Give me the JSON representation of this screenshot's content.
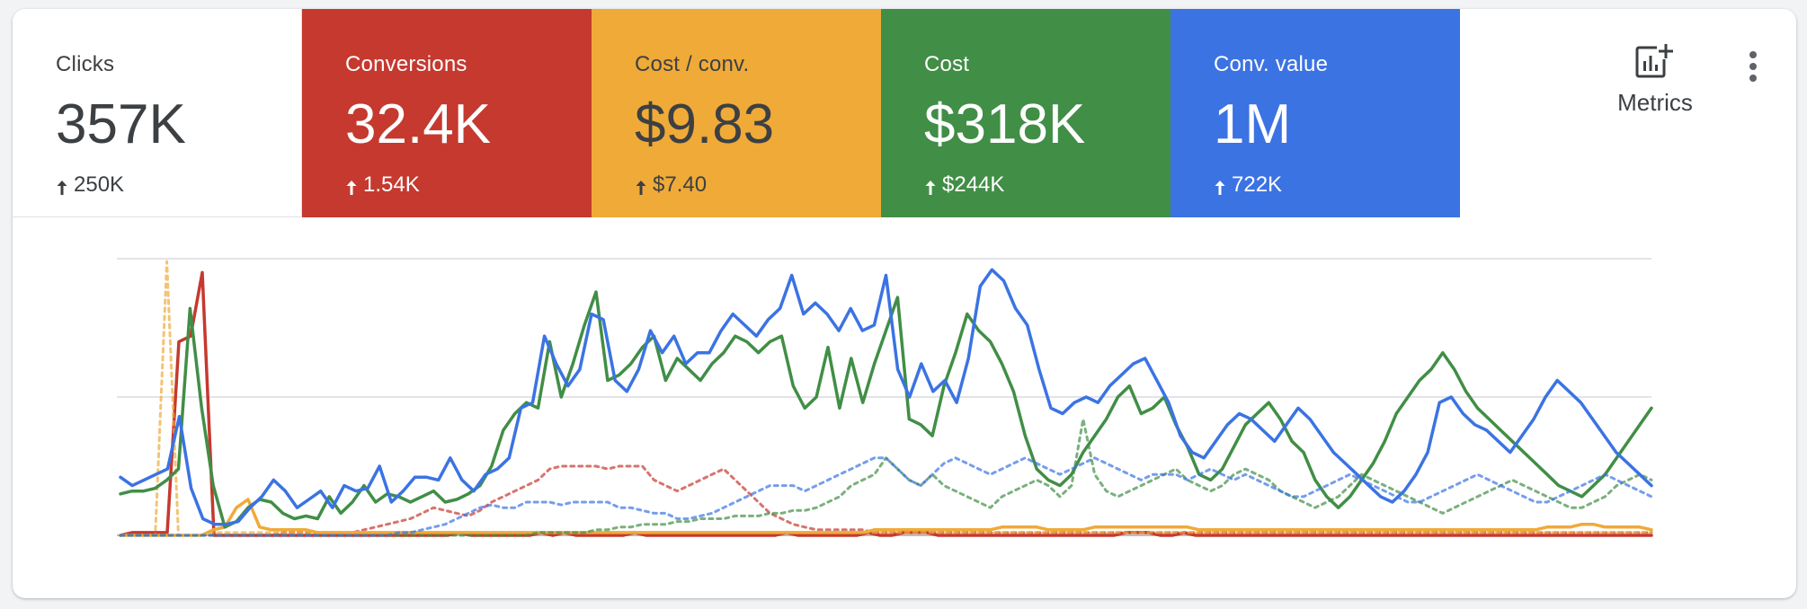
{
  "scorecards": [
    {
      "label": "Clicks",
      "value": "357K",
      "delta": "250K",
      "color": "#ffffff"
    },
    {
      "label": "Conversions",
      "value": "32.4K",
      "delta": "1.54K",
      "color": "#c5392f"
    },
    {
      "label": "Cost / conv.",
      "value": "$9.83",
      "delta": "$7.40",
      "color": "#efaa38"
    },
    {
      "label": "Cost",
      "value": "$318K",
      "delta": "$244K",
      "color": "#418e46"
    },
    {
      "label": "Conv. value",
      "value": "1M",
      "delta": "722K",
      "color": "#3b73e3"
    }
  ],
  "toolbar": {
    "metrics_label": "Metrics",
    "metrics_icon": "add-chart-icon",
    "more_icon": "more-vert-icon"
  },
  "chart_data": {
    "type": "line",
    "title": "",
    "xlabel": "",
    "ylabel": "",
    "ylim": [
      0,
      100
    ],
    "grid": true,
    "legend": "none",
    "series": [
      {
        "color": "#c5392f",
        "style": "solid",
        "values": [
          0,
          1,
          1,
          1,
          1,
          70,
          72,
          95,
          0,
          0,
          0,
          0,
          0,
          0,
          0,
          0,
          0,
          0,
          0,
          0,
          0,
          0,
          0,
          0,
          0,
          0,
          0,
          0,
          0,
          1,
          0,
          0,
          0,
          0,
          0,
          0,
          1,
          0,
          1,
          0,
          0,
          0,
          0,
          0,
          1,
          0,
          0,
          0,
          0,
          0,
          0,
          0,
          0,
          0,
          0,
          0,
          0,
          1,
          0,
          0,
          0,
          0,
          0,
          0,
          1,
          0,
          0,
          1,
          1,
          1,
          0,
          0,
          0,
          0,
          0,
          0,
          0,
          0,
          0,
          0,
          0,
          0,
          0,
          0,
          0,
          0,
          1,
          1,
          1,
          0,
          0,
          1,
          0,
          0,
          0,
          0,
          0,
          0,
          0,
          0,
          0,
          0,
          0,
          0,
          0,
          0,
          0,
          0,
          0,
          0,
          0,
          0,
          0,
          0,
          0,
          0,
          0,
          0,
          0,
          0,
          0,
          0,
          0,
          0,
          0,
          0,
          0,
          0,
          0,
          0,
          0,
          0
        ]
      },
      {
        "color": "#c5392f",
        "style": "dotted",
        "values": [
          0,
          0,
          0,
          0,
          0,
          0,
          0,
          0,
          0,
          0,
          0,
          0,
          0,
          0,
          1,
          1,
          1,
          1,
          1,
          1,
          1,
          2,
          3,
          4,
          5,
          6,
          8,
          10,
          9,
          8,
          7,
          9,
          12,
          14,
          16,
          18,
          20,
          24,
          25,
          25,
          25,
          25,
          24,
          25,
          25,
          25,
          20,
          18,
          16,
          18,
          20,
          22,
          24,
          20,
          16,
          12,
          8,
          6,
          4,
          3,
          2,
          2,
          2,
          2,
          2,
          1,
          1,
          1,
          1,
          1,
          1,
          1,
          1,
          1,
          1,
          1,
          1,
          1,
          1,
          1,
          1,
          1,
          1,
          1,
          1,
          1,
          1,
          1,
          1,
          1,
          1,
          1,
          1,
          1,
          1,
          1,
          1,
          1,
          1,
          1,
          1,
          1,
          1,
          1,
          1,
          1,
          1,
          1,
          1,
          1,
          1,
          1,
          1,
          1,
          1,
          1,
          1,
          1,
          1,
          1,
          1,
          1,
          1,
          1,
          1,
          1,
          1,
          1,
          1,
          1,
          1,
          1,
          1
        ]
      },
      {
        "color": "#efaa38",
        "style": "solid",
        "values": [
          0,
          0,
          0,
          0,
          0,
          0,
          0,
          0,
          2,
          3,
          10,
          13,
          3,
          2,
          2,
          2,
          2,
          1,
          1,
          1,
          1,
          1,
          1,
          1,
          1,
          1,
          1,
          1,
          1,
          1,
          1,
          1,
          1,
          1,
          1,
          1,
          1,
          1,
          1,
          1,
          1,
          1,
          1,
          1,
          1,
          1,
          1,
          1,
          1,
          1,
          1,
          1,
          1,
          1,
          1,
          1,
          1,
          1,
          1,
          1,
          1,
          1,
          1,
          1,
          1,
          2,
          2,
          2,
          2,
          2,
          2,
          2,
          2,
          2,
          2,
          2,
          3,
          3,
          3,
          3,
          2,
          2,
          2,
          2,
          3,
          3,
          3,
          3,
          3,
          3,
          3,
          3,
          3,
          2,
          2,
          2,
          2,
          2,
          2,
          2,
          2,
          2,
          2,
          2,
          2,
          2,
          2,
          2,
          2,
          2,
          2,
          2,
          2,
          2,
          2,
          2,
          2,
          2,
          2,
          2,
          2,
          2,
          2,
          3,
          3,
          3,
          4,
          4,
          3,
          3,
          3,
          3,
          2
        ]
      },
      {
        "color": "#efaa38",
        "style": "dotted",
        "values": [
          0,
          0,
          0,
          0,
          99,
          0,
          0,
          0,
          1,
          1,
          1,
          1,
          1,
          1,
          1,
          1,
          1,
          1,
          1,
          1,
          1,
          1,
          1,
          1,
          1,
          1,
          1,
          1,
          1,
          1,
          1,
          1,
          1,
          1,
          1,
          1,
          1,
          1,
          1,
          1,
          1,
          1,
          1,
          1,
          1,
          1,
          1,
          1,
          1,
          1,
          1,
          1,
          1,
          1,
          1,
          1,
          1,
          1,
          1,
          1,
          1,
          1,
          1,
          1,
          1,
          1,
          1,
          1,
          1,
          1,
          1,
          1,
          1,
          1,
          1,
          1,
          1,
          1,
          1,
          1,
          1,
          1,
          1,
          1,
          1,
          1,
          1,
          1,
          1,
          1,
          1,
          1,
          1,
          1,
          1,
          1,
          1,
          1,
          1,
          1,
          1,
          1,
          1,
          1,
          1,
          1,
          1,
          1,
          1,
          1,
          1,
          1,
          1,
          1,
          1,
          1,
          1,
          1,
          1,
          1,
          1,
          1,
          1,
          1,
          1,
          1,
          1,
          1,
          1,
          1,
          1,
          1,
          1
        ]
      },
      {
        "color": "#418e46",
        "style": "solid",
        "values": [
          15,
          16,
          16,
          17,
          20,
          24,
          82,
          46,
          18,
          3,
          5,
          10,
          13,
          12,
          8,
          6,
          7,
          6,
          14,
          8,
          12,
          18,
          12,
          15,
          14,
          12,
          14,
          16,
          12,
          13,
          15,
          18,
          25,
          38,
          44,
          48,
          46,
          70,
          50,
          62,
          76,
          88,
          56,
          58,
          62,
          68,
          72,
          56,
          64,
          60,
          56,
          62,
          66,
          72,
          70,
          66,
          70,
          72,
          54,
          46,
          50,
          68,
          46,
          64,
          48,
          62,
          74,
          86,
          42,
          40,
          36,
          54,
          66,
          80,
          74,
          70,
          62,
          52,
          36,
          24,
          20,
          18,
          22,
          30,
          36,
          42,
          50,
          54,
          44,
          46,
          50,
          40,
          32,
          22,
          20,
          24,
          32,
          40,
          44,
          48,
          42,
          34,
          30,
          20,
          14,
          10,
          14,
          20,
          26,
          34,
          44,
          50,
          56,
          60,
          66,
          60,
          52,
          46,
          42,
          38,
          34,
          30,
          26,
          22,
          18,
          16,
          14,
          18,
          22,
          28,
          34,
          40,
          46
        ]
      },
      {
        "color": "#418e46",
        "style": "dotted",
        "values": [
          0,
          0,
          0,
          0,
          0,
          0,
          0,
          0,
          0,
          0,
          0,
          0,
          0,
          0,
          0,
          0,
          0,
          0,
          0,
          0,
          0,
          0,
          0,
          0,
          0,
          0,
          0,
          0,
          0,
          0,
          0,
          0,
          0,
          0,
          0,
          0,
          1,
          1,
          1,
          1,
          1,
          2,
          2,
          3,
          3,
          4,
          4,
          4,
          5,
          5,
          6,
          6,
          6,
          7,
          7,
          7,
          8,
          8,
          9,
          9,
          10,
          12,
          14,
          18,
          20,
          22,
          28,
          24,
          20,
          18,
          22,
          18,
          16,
          14,
          12,
          10,
          14,
          16,
          18,
          20,
          18,
          14,
          18,
          42,
          22,
          16,
          14,
          16,
          18,
          20,
          22,
          24,
          20,
          18,
          16,
          18,
          22,
          24,
          22,
          20,
          16,
          14,
          12,
          10,
          12,
          14,
          18,
          22,
          20,
          18,
          16,
          14,
          12,
          10,
          8,
          10,
          12,
          14,
          16,
          18,
          20,
          18,
          16,
          14,
          12,
          10,
          10,
          12,
          14,
          18,
          20,
          22,
          20
        ]
      },
      {
        "color": "#3b73e3",
        "style": "solid",
        "values": [
          21,
          18,
          20,
          22,
          24,
          43,
          17,
          6,
          4,
          4,
          5,
          10,
          14,
          20,
          16,
          10,
          13,
          16,
          10,
          18,
          16,
          17,
          25,
          12,
          16,
          21,
          21,
          20,
          28,
          20,
          16,
          22,
          24,
          28,
          46,
          48,
          72,
          62,
          54,
          60,
          80,
          78,
          56,
          52,
          60,
          74,
          66,
          72,
          62,
          66,
          66,
          74,
          80,
          76,
          72,
          78,
          82,
          94,
          80,
          84,
          80,
          74,
          82,
          74,
          76,
          94,
          60,
          50,
          62,
          52,
          56,
          48,
          64,
          90,
          96,
          92,
          82,
          76,
          60,
          46,
          44,
          48,
          50,
          48,
          54,
          58,
          62,
          64,
          56,
          48,
          36,
          30,
          28,
          34,
          40,
          44,
          42,
          38,
          34,
          40,
          46,
          42,
          36,
          30,
          26,
          22,
          18,
          14,
          12,
          16,
          22,
          30,
          48,
          50,
          44,
          40,
          38,
          34,
          30,
          36,
          42,
          50,
          56,
          52,
          48,
          42,
          36,
          30,
          26,
          22,
          18
        ]
      },
      {
        "color": "#3b73e3",
        "style": "dotted",
        "values": [
          0,
          0,
          0,
          0,
          0,
          0,
          0,
          0,
          0,
          0,
          0,
          0,
          0,
          0,
          0,
          0,
          0,
          0,
          0,
          0,
          0,
          0,
          0,
          0,
          1,
          1,
          2,
          3,
          4,
          6,
          8,
          10,
          11,
          10,
          10,
          12,
          12,
          12,
          11,
          12,
          12,
          12,
          12,
          10,
          10,
          9,
          8,
          8,
          6,
          6,
          7,
          8,
          10,
          12,
          14,
          16,
          18,
          18,
          18,
          16,
          18,
          20,
          22,
          24,
          26,
          28,
          28,
          24,
          20,
          18,
          22,
          26,
          28,
          26,
          24,
          22,
          24,
          26,
          28,
          26,
          24,
          22,
          24,
          26,
          28,
          26,
          24,
          22,
          20,
          22,
          22,
          22,
          20,
          22,
          24,
          22,
          20,
          22,
          20,
          18,
          16,
          14,
          14,
          16,
          18,
          20,
          22,
          20,
          18,
          16,
          14,
          12,
          12,
          14,
          16,
          18,
          20,
          22,
          20,
          18,
          16,
          14,
          12,
          12,
          14,
          16,
          18,
          20,
          22,
          20,
          18,
          16,
          14
        ]
      }
    ]
  }
}
